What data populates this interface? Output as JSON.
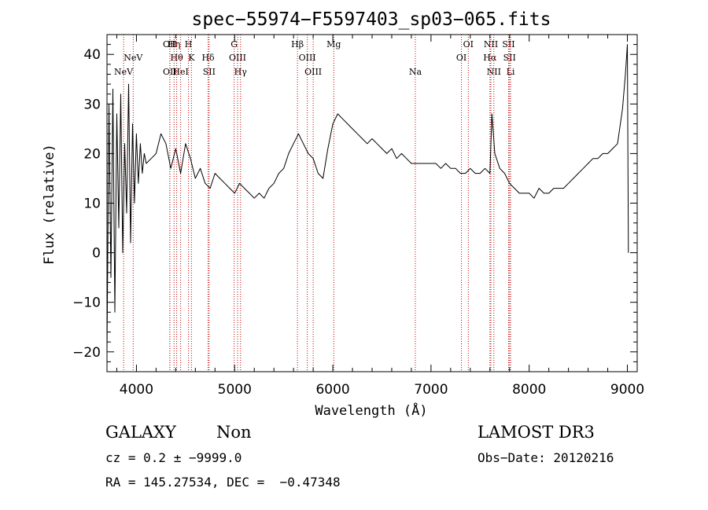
{
  "chart_data": {
    "type": "line",
    "title": "spec−55974−F5597403_sp03−065.fits",
    "xlabel": "Wavelength (Å)",
    "ylabel": "Flux (relative)",
    "xlim": [
      3700,
      9100
    ],
    "ylim": [
      -24,
      44
    ],
    "xticks": [
      4000,
      5000,
      6000,
      7000,
      8000,
      9000
    ],
    "yticks": [
      -20,
      -10,
      0,
      10,
      20,
      30,
      40
    ],
    "ytick_labels": [
      "−20",
      "−10",
      "0",
      "10",
      "20",
      "30",
      "40"
    ],
    "grid": false,
    "line_color": "#000000",
    "marker_color": "#c00000",
    "series": [
      {
        "x": [
          3700,
          3720,
          3740,
          3760,
          3780,
          3800,
          3820,
          3840,
          3860,
          3880,
          3900,
          3920,
          3940,
          3960,
          3980,
          4000,
          4020,
          4040,
          4060,
          4080,
          4100,
          4150,
          4200,
          4250,
          4300,
          4350,
          4400,
          4450,
          4500,
          4550,
          4600,
          4650,
          4700,
          4750,
          4800,
          4850,
          4900,
          4950,
          5000,
          5050,
          5100,
          5150,
          5200,
          5250,
          5300,
          5350,
          5400,
          5450,
          5500,
          5550,
          5600,
          5650,
          5700,
          5750,
          5800,
          5850,
          5900,
          5950,
          6000,
          6050,
          6100,
          6150,
          6200,
          6250,
          6300,
          6350,
          6400,
          6450,
          6500,
          6550,
          6600,
          6650,
          6700,
          6750,
          6800,
          6850,
          6900,
          6950,
          7000,
          7050,
          7100,
          7150,
          7200,
          7250,
          7300,
          7350,
          7400,
          7450,
          7500,
          7550,
          7600,
          7620,
          7650,
          7700,
          7750,
          7800,
          7850,
          7900,
          7950,
          8000,
          8050,
          8100,
          8150,
          8200,
          8250,
          8300,
          8350,
          8400,
          8450,
          8500,
          8550,
          8600,
          8650,
          8700,
          8750,
          8800,
          8850,
          8900,
          8950,
          8980,
          9000,
          9010
        ],
        "y": [
          -20,
          30,
          -5,
          33,
          -12,
          28,
          5,
          32,
          0,
          22,
          8,
          34,
          2,
          26,
          10,
          24,
          14,
          22,
          16,
          20,
          18,
          19,
          20,
          24,
          22,
          17,
          21,
          16,
          22,
          19,
          15,
          17,
          14,
          13,
          16,
          15,
          14,
          13,
          12,
          14,
          13,
          12,
          11,
          12,
          11,
          13,
          14,
          16,
          17,
          20,
          22,
          24,
          22,
          20,
          19,
          16,
          15,
          21,
          26,
          28,
          27,
          26,
          25,
          24,
          23,
          22,
          23,
          22,
          21,
          20,
          21,
          19,
          20,
          19,
          18,
          18,
          18,
          18,
          18,
          18,
          17,
          18,
          17,
          17,
          16,
          16,
          17,
          16,
          16,
          17,
          16,
          28,
          20,
          17,
          16,
          14,
          13,
          12,
          12,
          12,
          11,
          13,
          12,
          12,
          13,
          13,
          13,
          14,
          15,
          16,
          17,
          18,
          19,
          19,
          20,
          20,
          21,
          22,
          29,
          36,
          42,
          0
        ]
      }
    ],
    "line_markers": [
      {
        "wl": 3869,
        "label": "NeV",
        "row": 3
      },
      {
        "wl": 3967,
        "label": "NeV",
        "row": 2
      },
      {
        "wl": 4340,
        "label": "OII",
        "row": 1
      },
      {
        "wl": 4340,
        "label": "OII",
        "row": 3
      },
      {
        "wl": 4383,
        "label": "Hη",
        "row": 1
      },
      {
        "wl": 4410,
        "label": "Hθ",
        "row": 2
      },
      {
        "wl": 4450,
        "label": "HeI",
        "row": 3
      },
      {
        "wl": 4530,
        "label": "H",
        "row": 1
      },
      {
        "wl": 4560,
        "label": "K",
        "row": 2
      },
      {
        "wl": 4730,
        "label": "Hδ",
        "row": 2
      },
      {
        "wl": 4740,
        "label": "SII",
        "row": 3
      },
      {
        "wl": 4995,
        "label": "G",
        "row": 1
      },
      {
        "wl": 5030,
        "label": "OIII",
        "row": 2
      },
      {
        "wl": 5060,
        "label": "Hγ",
        "row": 3
      },
      {
        "wl": 5640,
        "label": "Hβ",
        "row": 1
      },
      {
        "wl": 5740,
        "label": "OIII",
        "row": 2
      },
      {
        "wl": 5800,
        "label": "OIII",
        "row": 3
      },
      {
        "wl": 6010,
        "label": "Mg",
        "row": 1
      },
      {
        "wl": 6840,
        "label": "Na",
        "row": 3
      },
      {
        "wl": 7310,
        "label": "OI",
        "row": 2
      },
      {
        "wl": 7380,
        "label": "OI",
        "row": 1
      },
      {
        "wl": 7600,
        "label": "Hα",
        "row": 2
      },
      {
        "wl": 7610,
        "label": "NII",
        "row": 1
      },
      {
        "wl": 7640,
        "label": "NII",
        "row": 3
      },
      {
        "wl": 7790,
        "label": "SII",
        "row": 1
      },
      {
        "wl": 7800,
        "label": "SII",
        "row": 2
      },
      {
        "wl": 7810,
        "label": "Li",
        "row": 3
      }
    ]
  },
  "info": {
    "class": "GALAXY",
    "subclass": "Non",
    "survey": "LAMOST DR3",
    "cz": "cz = 0.2 ± −9999.0",
    "obs_date": "Obs−Date: 20120216",
    "radec": "RA = 145.27534, DEC =  −0.47348"
  }
}
